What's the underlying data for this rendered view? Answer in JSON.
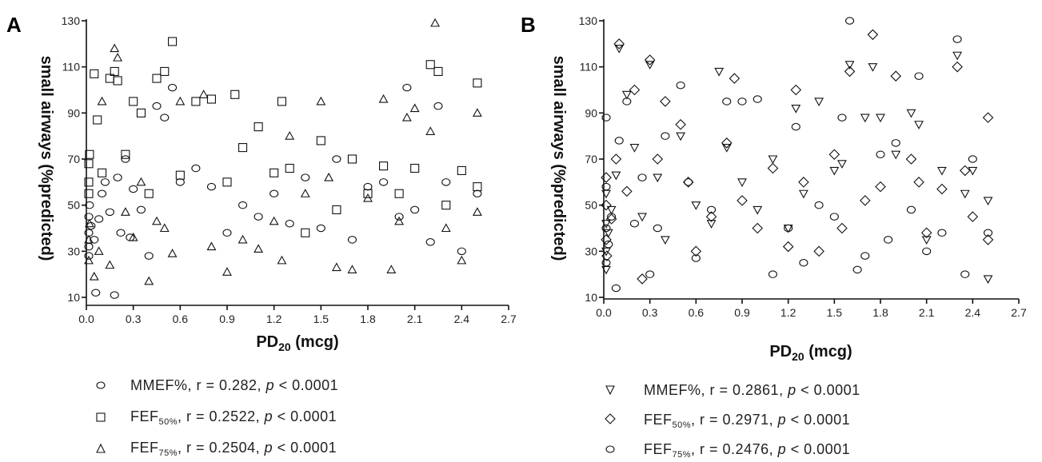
{
  "chart_data": [
    {
      "panel": "A",
      "type": "scatter",
      "xlabel": "PD",
      "xlabel_sub": "20",
      "xlabel_unit": " (mcg)",
      "ylabel": "small airways (%predicted)",
      "xlim": [
        0.0,
        2.7
      ],
      "ylim": [
        10,
        130
      ],
      "xticks": [
        "0.0",
        "0.3",
        "0.6",
        "0.9",
        "1.2",
        "1.5",
        "1.8",
        "2.1",
        "2.4",
        "2.7"
      ],
      "yticks": [
        "10",
        "30",
        "50",
        "70",
        "90",
        "110",
        "130"
      ],
      "grid": false,
      "legend_position": "bottom",
      "series": [
        {
          "marker": "circle",
          "legend": {
            "main": "MMEF%",
            "sub": "",
            "stat": ", r = 0.282, ",
            "p": "p",
            "tail": " < 0.0001"
          },
          "points": [
            [
              0.0,
              32
            ],
            [
              0.0,
              38
            ],
            [
              0.0,
              45
            ],
            [
              0.01,
              28
            ],
            [
              0.02,
              50
            ],
            [
              0.03,
              41
            ],
            [
              0.05,
              35
            ],
            [
              0.06,
              12
            ],
            [
              0.08,
              44
            ],
            [
              0.1,
              55
            ],
            [
              0.12,
              60
            ],
            [
              0.15,
              47
            ],
            [
              0.18,
              11
            ],
            [
              0.2,
              62
            ],
            [
              0.22,
              38
            ],
            [
              0.25,
              70
            ],
            [
              0.28,
              36
            ],
            [
              0.3,
              57
            ],
            [
              0.35,
              48
            ],
            [
              0.4,
              28
            ],
            [
              0.45,
              93
            ],
            [
              0.5,
              88
            ],
            [
              0.55,
              101
            ],
            [
              0.6,
              60
            ],
            [
              0.7,
              66
            ],
            [
              0.8,
              58
            ],
            [
              0.9,
              38
            ],
            [
              1.0,
              50
            ],
            [
              1.1,
              45
            ],
            [
              1.2,
              55
            ],
            [
              1.3,
              42
            ],
            [
              1.4,
              62
            ],
            [
              1.5,
              40
            ],
            [
              1.6,
              70
            ],
            [
              1.7,
              35
            ],
            [
              1.8,
              58
            ],
            [
              1.9,
              60
            ],
            [
              2.0,
              45
            ],
            [
              2.05,
              101
            ],
            [
              2.1,
              48
            ],
            [
              2.2,
              34
            ],
            [
              2.25,
              93
            ],
            [
              2.3,
              60
            ],
            [
              2.4,
              30
            ],
            [
              2.5,
              55
            ]
          ]
        },
        {
          "marker": "square",
          "legend": {
            "main": "FEF",
            "sub": "50%",
            "stat": ", r = 0.2522,  ",
            "p": "p",
            "tail": " < 0.0001"
          },
          "points": [
            [
              0.0,
              60
            ],
            [
              0.0,
              68
            ],
            [
              0.01,
              55
            ],
            [
              0.02,
              72
            ],
            [
              0.05,
              107
            ],
            [
              0.07,
              87
            ],
            [
              0.1,
              64
            ],
            [
              0.15,
              105
            ],
            [
              0.18,
              108
            ],
            [
              0.2,
              104
            ],
            [
              0.25,
              72
            ],
            [
              0.3,
              95
            ],
            [
              0.35,
              90
            ],
            [
              0.4,
              55
            ],
            [
              0.45,
              105
            ],
            [
              0.5,
              108
            ],
            [
              0.55,
              121
            ],
            [
              0.6,
              63
            ],
            [
              0.7,
              95
            ],
            [
              0.8,
              96
            ],
            [
              0.9,
              60
            ],
            [
              0.95,
              98
            ],
            [
              1.0,
              75
            ],
            [
              1.1,
              84
            ],
            [
              1.2,
              64
            ],
            [
              1.25,
              95
            ],
            [
              1.3,
              66
            ],
            [
              1.4,
              38
            ],
            [
              1.5,
              78
            ],
            [
              1.6,
              48
            ],
            [
              1.7,
              70
            ],
            [
              1.8,
              55
            ],
            [
              1.9,
              67
            ],
            [
              2.0,
              55
            ],
            [
              2.1,
              66
            ],
            [
              2.2,
              111
            ],
            [
              2.25,
              108
            ],
            [
              2.3,
              50
            ],
            [
              2.4,
              65
            ],
            [
              2.5,
              103
            ],
            [
              2.5,
              58
            ]
          ]
        },
        {
          "marker": "triangle",
          "legend": {
            "main": "FEF",
            "sub": "75%",
            "stat": ", r = 0.2504,  ",
            "p": "p",
            "tail": " < 0.0001"
          },
          "points": [
            [
              0.0,
              26
            ],
            [
              0.0,
              35
            ],
            [
              0.02,
              42
            ],
            [
              0.05,
              19
            ],
            [
              0.08,
              30
            ],
            [
              0.1,
              95
            ],
            [
              0.15,
              24
            ],
            [
              0.18,
              118
            ],
            [
              0.2,
              114
            ],
            [
              0.25,
              47
            ],
            [
              0.3,
              36
            ],
            [
              0.35,
              60
            ],
            [
              0.4,
              17
            ],
            [
              0.45,
              43
            ],
            [
              0.5,
              40
            ],
            [
              0.55,
              29
            ],
            [
              0.6,
              95
            ],
            [
              0.75,
              98
            ],
            [
              0.8,
              32
            ],
            [
              0.9,
              21
            ],
            [
              1.0,
              35
            ],
            [
              1.1,
              31
            ],
            [
              1.2,
              43
            ],
            [
              1.25,
              26
            ],
            [
              1.3,
              80
            ],
            [
              1.4,
              55
            ],
            [
              1.5,
              95
            ],
            [
              1.55,
              62
            ],
            [
              1.6,
              23
            ],
            [
              1.7,
              22
            ],
            [
              1.8,
              53
            ],
            [
              1.9,
              96
            ],
            [
              1.95,
              22
            ],
            [
              2.0,
              43
            ],
            [
              2.05,
              88
            ],
            [
              2.1,
              92
            ],
            [
              2.2,
              82
            ],
            [
              2.23,
              129
            ],
            [
              2.3,
              40
            ],
            [
              2.4,
              26
            ],
            [
              2.5,
              47
            ],
            [
              2.5,
              90
            ]
          ]
        }
      ]
    },
    {
      "panel": "B",
      "type": "scatter",
      "xlabel": "PD",
      "xlabel_sub": "20",
      "xlabel_unit": " (mcg)",
      "ylabel": "small airways (%predicted)",
      "xlim": [
        0.0,
        2.7
      ],
      "ylim": [
        10,
        130
      ],
      "xticks": [
        "0.0",
        "0.3",
        "0.6",
        "0.9",
        "1.2",
        "1.5",
        "1.8",
        "2.1",
        "2.4",
        "2.7"
      ],
      "yticks": [
        "10",
        "30",
        "50",
        "70",
        "90",
        "110",
        "130"
      ],
      "grid": false,
      "legend_position": "bottom",
      "series": [
        {
          "marker": "triangle-down",
          "legend": {
            "main": "MMEF%",
            "sub": "",
            "stat": ", r = 0.2861, ",
            "p": "p",
            "tail": " < 0.0001"
          },
          "points": [
            [
              0.0,
              30
            ],
            [
              0.0,
              42
            ],
            [
              0.0,
              55
            ],
            [
              0.01,
              22
            ],
            [
              0.03,
              38
            ],
            [
              0.05,
              48
            ],
            [
              0.08,
              63
            ],
            [
              0.1,
              118
            ],
            [
              0.15,
              98
            ],
            [
              0.2,
              75
            ],
            [
              0.25,
              45
            ],
            [
              0.3,
              111
            ],
            [
              0.35,
              62
            ],
            [
              0.4,
              35
            ],
            [
              0.5,
              80
            ],
            [
              0.6,
              50
            ],
            [
              0.7,
              42
            ],
            [
              0.75,
              108
            ],
            [
              0.8,
              75
            ],
            [
              0.9,
              60
            ],
            [
              1.0,
              48
            ],
            [
              1.1,
              70
            ],
            [
              1.2,
              40
            ],
            [
              1.25,
              92
            ],
            [
              1.3,
              55
            ],
            [
              1.4,
              95
            ],
            [
              1.5,
              65
            ],
            [
              1.55,
              68
            ],
            [
              1.6,
              111
            ],
            [
              1.7,
              88
            ],
            [
              1.75,
              110
            ],
            [
              1.8,
              88
            ],
            [
              1.9,
              72
            ],
            [
              2.0,
              90
            ],
            [
              2.05,
              85
            ],
            [
              2.1,
              35
            ],
            [
              2.2,
              65
            ],
            [
              2.3,
              115
            ],
            [
              2.35,
              55
            ],
            [
              2.4,
              65
            ],
            [
              2.5,
              18
            ],
            [
              2.5,
              52
            ]
          ]
        },
        {
          "marker": "diamond",
          "legend": {
            "main": "FEF",
            "sub": "50%",
            "stat": ", r = 0.2971, ",
            "p": "p",
            "tail": " < 0.0001"
          },
          "points": [
            [
              0.0,
              35
            ],
            [
              0.0,
              50
            ],
            [
              0.0,
              62
            ],
            [
              0.02,
              28
            ],
            [
              0.05,
              44
            ],
            [
              0.08,
              70
            ],
            [
              0.1,
              120
            ],
            [
              0.15,
              56
            ],
            [
              0.2,
              100
            ],
            [
              0.25,
              18
            ],
            [
              0.3,
              113
            ],
            [
              0.35,
              70
            ],
            [
              0.4,
              95
            ],
            [
              0.5,
              85
            ],
            [
              0.55,
              60
            ],
            [
              0.6,
              30
            ],
            [
              0.7,
              45
            ],
            [
              0.8,
              77
            ],
            [
              0.85,
              105
            ],
            [
              0.9,
              52
            ],
            [
              1.0,
              40
            ],
            [
              1.1,
              66
            ],
            [
              1.2,
              32
            ],
            [
              1.25,
              100
            ],
            [
              1.3,
              60
            ],
            [
              1.4,
              30
            ],
            [
              1.5,
              72
            ],
            [
              1.55,
              40
            ],
            [
              1.6,
              108
            ],
            [
              1.7,
              52
            ],
            [
              1.75,
              124
            ],
            [
              1.8,
              58
            ],
            [
              1.9,
              106
            ],
            [
              2.0,
              70
            ],
            [
              2.05,
              60
            ],
            [
              2.1,
              38
            ],
            [
              2.2,
              57
            ],
            [
              2.3,
              110
            ],
            [
              2.35,
              65
            ],
            [
              2.4,
              45
            ],
            [
              2.5,
              88
            ],
            [
              2.5,
              35
            ]
          ]
        },
        {
          "marker": "circle",
          "legend": {
            "main": "FEF",
            "sub": "75%",
            "stat": ", r = 0.2476, ",
            "p": "p",
            "tail": " < 0.0001"
          },
          "points": [
            [
              0.0,
              25
            ],
            [
              0.0,
              40
            ],
            [
              0.0,
              58
            ],
            [
              0.01,
              88
            ],
            [
              0.03,
              33
            ],
            [
              0.05,
              45
            ],
            [
              0.08,
              14
            ],
            [
              0.1,
              78
            ],
            [
              0.15,
              95
            ],
            [
              0.2,
              42
            ],
            [
              0.25,
              62
            ],
            [
              0.3,
              20
            ],
            [
              0.35,
              40
            ],
            [
              0.4,
              80
            ],
            [
              0.5,
              102
            ],
            [
              0.55,
              60
            ],
            [
              0.6,
              27
            ],
            [
              0.7,
              48
            ],
            [
              0.8,
              95
            ],
            [
              0.9,
              95
            ],
            [
              1.0,
              96
            ],
            [
              1.1,
              20
            ],
            [
              1.2,
              40
            ],
            [
              1.25,
              84
            ],
            [
              1.3,
              25
            ],
            [
              1.4,
              50
            ],
            [
              1.5,
              45
            ],
            [
              1.55,
              88
            ],
            [
              1.6,
              130
            ],
            [
              1.65,
              22
            ],
            [
              1.7,
              28
            ],
            [
              1.8,
              72
            ],
            [
              1.85,
              35
            ],
            [
              1.9,
              77
            ],
            [
              2.0,
              48
            ],
            [
              2.05,
              106
            ],
            [
              2.1,
              30
            ],
            [
              2.2,
              38
            ],
            [
              2.3,
              122
            ],
            [
              2.35,
              20
            ],
            [
              2.4,
              70
            ],
            [
              2.5,
              38
            ]
          ]
        }
      ]
    }
  ]
}
